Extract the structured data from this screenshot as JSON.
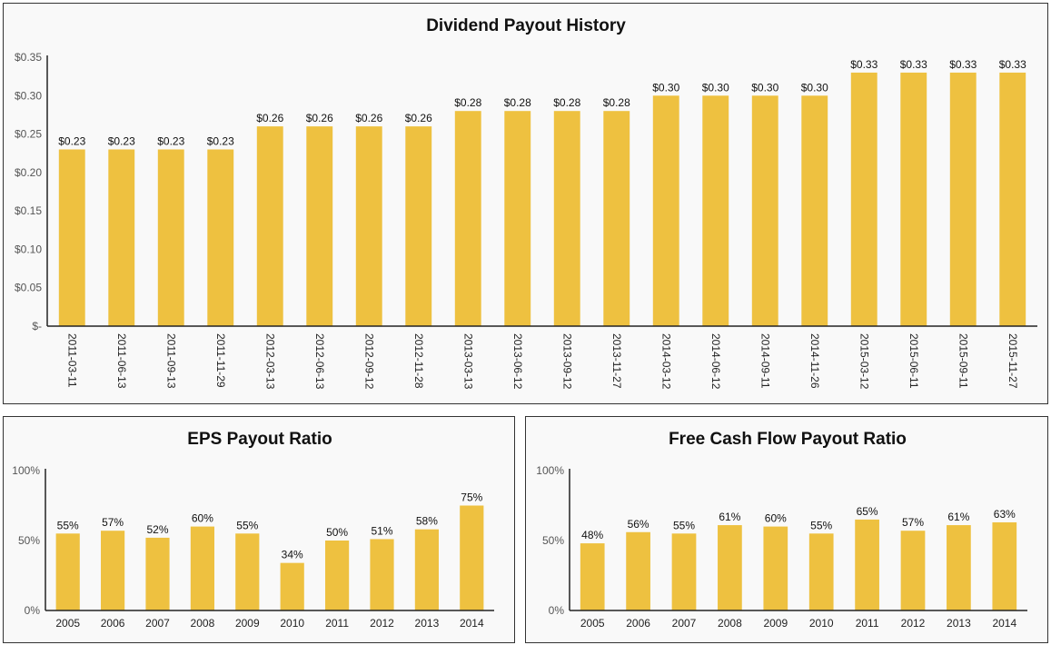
{
  "chart_data": [
    {
      "type": "bar",
      "title": "Dividend Payout History",
      "categories": [
        "2011-03-11",
        "2011-06-13",
        "2011-09-13",
        "2011-11-29",
        "2012-03-13",
        "2012-06-13",
        "2012-09-12",
        "2012-11-28",
        "2013-03-13",
        "2013-06-12",
        "2013-09-12",
        "2013-11-27",
        "2014-03-12",
        "2014-06-12",
        "2014-09-11",
        "2014-11-26",
        "2015-03-12",
        "2015-06-11",
        "2015-09-11",
        "2015-11-27"
      ],
      "values": [
        0.23,
        0.23,
        0.23,
        0.23,
        0.26,
        0.26,
        0.26,
        0.26,
        0.28,
        0.28,
        0.28,
        0.28,
        0.3,
        0.3,
        0.3,
        0.3,
        0.33,
        0.33,
        0.33,
        0.33
      ],
      "value_labels": [
        "$0.23",
        "$0.23",
        "$0.23",
        "$0.23",
        "$0.26",
        "$0.26",
        "$0.26",
        "$0.26",
        "$0.28",
        "$0.28",
        "$0.28",
        "$0.28",
        "$0.30",
        "$0.30",
        "$0.30",
        "$0.30",
        "$0.33",
        "$0.33",
        "$0.33",
        "$0.33"
      ],
      "yticks": [
        0,
        0.05,
        0.1,
        0.15,
        0.2,
        0.25,
        0.3,
        0.35
      ],
      "ytick_labels": [
        "$-",
        "$0.05",
        "$0.10",
        "$0.15",
        "$0.20",
        "$0.25",
        "$0.30",
        "$0.35"
      ],
      "ylim": [
        0,
        0.35
      ],
      "bar_color": "#eec140",
      "xlabel": "",
      "ylabel": ""
    },
    {
      "type": "bar",
      "title": "EPS Payout Ratio",
      "categories": [
        "2005",
        "2006",
        "2007",
        "2008",
        "2009",
        "2010",
        "2011",
        "2012",
        "2013",
        "2014"
      ],
      "values": [
        55,
        57,
        52,
        60,
        55,
        34,
        50,
        51,
        58,
        75
      ],
      "value_labels": [
        "55%",
        "57%",
        "52%",
        "60%",
        "55%",
        "34%",
        "50%",
        "51%",
        "58%",
        "75%"
      ],
      "yticks": [
        0,
        50,
        100
      ],
      "ytick_labels": [
        "0%",
        "50%",
        "100%"
      ],
      "ylim": [
        0,
        100
      ],
      "bar_color": "#eec140",
      "xlabel": "",
      "ylabel": ""
    },
    {
      "type": "bar",
      "title": "Free Cash Flow Payout Ratio",
      "categories": [
        "2005",
        "2006",
        "2007",
        "2008",
        "2009",
        "2010",
        "2011",
        "2012",
        "2013",
        "2014"
      ],
      "values": [
        48,
        56,
        55,
        61,
        60,
        55,
        65,
        57,
        61,
        63
      ],
      "value_labels": [
        "48%",
        "56%",
        "55%",
        "61%",
        "60%",
        "55%",
        "65%",
        "57%",
        "61%",
        "63%"
      ],
      "yticks": [
        0,
        50,
        100
      ],
      "ytick_labels": [
        "0%",
        "50%",
        "100%"
      ],
      "ylim": [
        0,
        100
      ],
      "bar_color": "#eec140",
      "xlabel": "",
      "ylabel": ""
    }
  ]
}
